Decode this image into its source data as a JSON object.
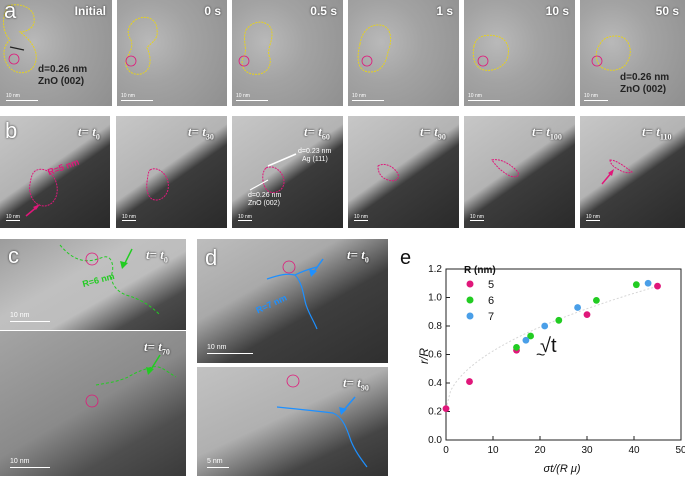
{
  "panel_a": {
    "letter": "a",
    "frames": [
      {
        "time": "Initial",
        "scale": "10 nm"
      },
      {
        "time": "0 s",
        "scale": "10 nm"
      },
      {
        "time": "0.5 s",
        "scale": "10 nm"
      },
      {
        "time": "1 s",
        "scale": "10 nm"
      },
      {
        "time": "10 s",
        "scale": "10 nm"
      },
      {
        "time": "50 s",
        "scale": "10 nm"
      }
    ],
    "annot_first": {
      "d": "d=0.26 nm",
      "plane": "ZnO (002)"
    },
    "annot_last": {
      "d": "d=0.26 nm",
      "plane": "ZnO (002)"
    }
  },
  "panel_b": {
    "letter": "b",
    "frames": [
      {
        "t": "t",
        "sub": "0"
      },
      {
        "t": "t",
        "sub": "30"
      },
      {
        "t": "t",
        "sub": "60"
      },
      {
        "t": "t",
        "sub": "90"
      },
      {
        "t": "t",
        "sub": "100"
      },
      {
        "t": "t",
        "sub": "110"
      }
    ],
    "radius_label": "R=5 nm",
    "ag_d": "d=0.23 nm",
    "ag_plane": "Ag (111)",
    "zno_d": "d=0.26 nm",
    "zno_plane": "ZnO (002)",
    "scale": "10 nm"
  },
  "panel_c": {
    "letter": "c",
    "top": {
      "t": "t",
      "sub": "0",
      "radius": "R=6 nm",
      "scale": "10 nm"
    },
    "bottom": {
      "t": "t",
      "sub": "70",
      "scale": "10 nm"
    }
  },
  "panel_d": {
    "letter": "d",
    "top": {
      "t": "t",
      "sub": "0",
      "radius": "R=7 nm",
      "scale": "10 nm"
    },
    "bottom": {
      "t": "t",
      "sub": "90",
      "scale": "5 nm"
    }
  },
  "panel_e": {
    "letter": "e",
    "legend_title": "R (nm)",
    "annotation": "√t"
  },
  "chart_data": {
    "type": "scatter",
    "xlabel": "σt/(R μ)",
    "ylabel": "r/R",
    "xlim": [
      0,
      50
    ],
    "ylim": [
      0.0,
      1.2
    ],
    "xticks": [
      0,
      10,
      20,
      30,
      40,
      50
    ],
    "yticks": [
      0.0,
      0.2,
      0.4,
      0.6,
      0.8,
      1.0,
      1.2
    ],
    "grid": false,
    "legend_position": "top-left",
    "series": [
      {
        "name": "5",
        "color": "#e0177a",
        "points": [
          [
            0,
            0.22
          ],
          [
            5,
            0.41
          ],
          [
            15,
            0.63
          ],
          [
            30,
            0.88
          ],
          [
            45,
            1.08
          ]
        ]
      },
      {
        "name": "6",
        "color": "#22cc22",
        "points": [
          [
            15,
            0.65
          ],
          [
            18,
            0.73
          ],
          [
            24,
            0.84
          ],
          [
            32,
            0.98
          ],
          [
            40.5,
            1.09
          ]
        ]
      },
      {
        "name": "7",
        "color": "#4a9fe8",
        "points": [
          [
            17,
            0.7
          ],
          [
            21,
            0.8
          ],
          [
            28,
            0.93
          ],
          [
            43,
            1.1
          ]
        ]
      }
    ],
    "fit_curve": "sqrt"
  },
  "colors": {
    "yellow_outline": "#e6d21e",
    "pink_outline": "#e0177a",
    "green_outline": "#22cc22",
    "blue_outline": "#1e90ff"
  }
}
